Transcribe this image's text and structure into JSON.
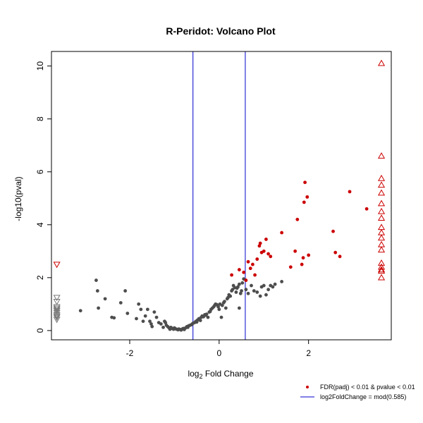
{
  "chart_data": {
    "type": "scatter",
    "title": "R-Peridot: Volcano Plot",
    "xlabel": {
      "base": "log",
      "sub": "2",
      "rest": " Fold Change"
    },
    "ylabel": "-log10(pval)",
    "xlim": [
      -3.75,
      3.85
    ],
    "ylim": [
      -0.35,
      10.55
    ],
    "xticks": [
      -2,
      0,
      2
    ],
    "yticks": [
      0,
      2,
      4,
      6,
      8,
      10
    ],
    "vlines": [
      -0.585,
      0.585
    ],
    "colors": {
      "nonsig": "#4d4d4d",
      "sig": "#cc0000",
      "vline": "#0000cc",
      "frame": "#000000"
    },
    "legend": [
      {
        "label": "FDR(padj) < 0.01 & pvalue < 0.01",
        "marker": "dot",
        "color": "#cc0000"
      },
      {
        "label": "log2FoldChange = mod(0.585)",
        "marker": "line",
        "color": "#0000cc"
      }
    ],
    "legend_position": "bottom-right",
    "series": [
      {
        "marker": "dot",
        "color": "#4d4d4d",
        "points": [
          [
            -3.1,
            0.75
          ],
          [
            -2.75,
            1.9
          ],
          [
            -2.72,
            1.5
          ],
          [
            -2.7,
            0.85
          ],
          [
            -2.55,
            1.2
          ],
          [
            -2.4,
            0.5
          ],
          [
            -2.35,
            0.48
          ],
          [
            -2.2,
            1.05
          ],
          [
            -2.1,
            1.5
          ],
          [
            -2.05,
            0.65
          ],
          [
            -1.85,
            0.45
          ],
          [
            -1.8,
            1.0
          ],
          [
            -1.75,
            0.8
          ],
          [
            -1.7,
            0.35
          ],
          [
            -1.65,
            0.55
          ],
          [
            -1.6,
            0.8
          ],
          [
            -1.55,
            0.35
          ],
          [
            -1.52,
            0.25
          ],
          [
            -1.5,
            0.15
          ],
          [
            -1.45,
            0.7
          ],
          [
            -1.4,
            0.5
          ],
          [
            -1.35,
            0.3
          ],
          [
            -1.3,
            0.25
          ],
          [
            -1.25,
            0.12
          ],
          [
            -1.22,
            0.35
          ],
          [
            -1.2,
            0.3
          ],
          [
            -1.18,
            0.2
          ],
          [
            -1.15,
            0.15
          ],
          [
            -1.12,
            0.1
          ],
          [
            -1.1,
            0.05
          ],
          [
            -1.08,
            0.12
          ],
          [
            -1.05,
            0.08
          ],
          [
            -1.02,
            0.05
          ],
          [
            -1.0,
            0.1
          ],
          [
            -0.98,
            0.07
          ],
          [
            -0.95,
            0.05
          ],
          [
            -0.92,
            0.03
          ],
          [
            -0.9,
            0.06
          ],
          [
            -0.87,
            0.04
          ],
          [
            -0.85,
            0.02
          ],
          [
            -0.82,
            0.06
          ],
          [
            -0.8,
            0.08
          ],
          [
            -0.78,
            0.04
          ],
          [
            -0.75,
            0.1
          ],
          [
            -0.72,
            0.15
          ],
          [
            -0.7,
            0.12
          ],
          [
            -0.68,
            0.18
          ],
          [
            -0.65,
            0.2
          ],
          [
            -0.62,
            0.22
          ],
          [
            -0.6,
            0.25
          ],
          [
            -0.58,
            0.28
          ],
          [
            -0.55,
            0.3
          ],
          [
            -0.52,
            0.35
          ],
          [
            -0.5,
            0.32
          ],
          [
            -0.48,
            0.4
          ],
          [
            -0.45,
            0.45
          ],
          [
            -0.42,
            0.38
          ],
          [
            -0.4,
            0.5
          ],
          [
            -0.38,
            0.55
          ],
          [
            -0.35,
            0.52
          ],
          [
            -0.32,
            0.6
          ],
          [
            -0.3,
            0.58
          ],
          [
            -0.28,
            0.62
          ],
          [
            -0.25,
            0.5
          ],
          [
            -0.22,
            0.7
          ],
          [
            -0.2,
            0.72
          ],
          [
            -0.18,
            0.8
          ],
          [
            -0.15,
            0.85
          ],
          [
            -0.12,
            0.9
          ],
          [
            -0.1,
            0.95
          ],
          [
            -0.08,
            1.0
          ],
          [
            -0.05,
            0.98
          ],
          [
            -0.02,
            0.9
          ],
          [
            0.0,
            0.8
          ],
          [
            0.02,
            1.0
          ],
          [
            0.05,
            0.5
          ],
          [
            0.07,
            0.95
          ],
          [
            0.1,
            1.05
          ],
          [
            0.12,
            1.1
          ],
          [
            0.15,
            0.85
          ],
          [
            0.18,
            1.2
          ],
          [
            0.2,
            1.25
          ],
          [
            0.22,
            1.35
          ],
          [
            0.25,
            1.3
          ],
          [
            0.28,
            1.5
          ],
          [
            0.3,
            1.55
          ],
          [
            0.32,
            1.7
          ],
          [
            0.35,
            1.62
          ],
          [
            0.38,
            1.45
          ],
          [
            0.4,
            1.6
          ],
          [
            0.42,
            1.65
          ],
          [
            0.45,
            1.75
          ],
          [
            0.48,
            1.4
          ],
          [
            0.5,
            1.5
          ],
          [
            0.52,
            1.8
          ],
          [
            0.55,
            1.95
          ],
          [
            0.45,
            0.85
          ],
          [
            0.6,
            1.55
          ],
          [
            0.65,
            1.4
          ],
          [
            0.72,
            1.7
          ],
          [
            0.78,
            1.5
          ],
          [
            0.85,
            1.45
          ],
          [
            0.92,
            1.3
          ],
          [
            0.95,
            1.65
          ],
          [
            1.0,
            1.7
          ],
          [
            1.05,
            1.35
          ],
          [
            1.1,
            1.55
          ],
          [
            1.15,
            1.7
          ],
          [
            1.2,
            1.65
          ],
          [
            1.25,
            1.75
          ],
          [
            1.4,
            1.85
          ]
        ]
      },
      {
        "marker": "dot",
        "color": "#cc0000",
        "points": [
          [
            0.28,
            2.1
          ],
          [
            0.45,
            2.3
          ],
          [
            0.55,
            2.2
          ],
          [
            0.6,
            1.9
          ],
          [
            0.65,
            2.6
          ],
          [
            0.7,
            2.35
          ],
          [
            0.75,
            2.5
          ],
          [
            0.8,
            2.1
          ],
          [
            0.85,
            2.7
          ],
          [
            0.9,
            3.2
          ],
          [
            0.92,
            3.3
          ],
          [
            0.95,
            2.95
          ],
          [
            1.0,
            3.0
          ],
          [
            1.05,
            3.45
          ],
          [
            1.1,
            2.9
          ],
          [
            1.15,
            2.8
          ],
          [
            1.4,
            3.7
          ],
          [
            1.6,
            2.4
          ],
          [
            1.7,
            3.0
          ],
          [
            1.75,
            4.2
          ],
          [
            1.85,
            2.5
          ],
          [
            1.88,
            2.75
          ],
          [
            1.9,
            4.85
          ],
          [
            1.92,
            5.6
          ],
          [
            1.97,
            5.05
          ],
          [
            2.0,
            2.85
          ],
          [
            2.55,
            3.75
          ],
          [
            2.6,
            2.95
          ],
          [
            2.7,
            2.8
          ],
          [
            2.92,
            5.25
          ],
          [
            3.3,
            4.6
          ]
        ]
      },
      {
        "marker": "triangle-up",
        "color": "#cc0000",
        "points": [
          [
            3.63,
            10.1
          ],
          [
            3.63,
            6.6
          ],
          [
            3.63,
            5.75
          ],
          [
            3.63,
            5.5
          ],
          [
            3.63,
            5.2
          ],
          [
            3.63,
            4.8
          ],
          [
            3.63,
            4.5
          ],
          [
            3.63,
            4.25
          ],
          [
            3.63,
            3.9
          ],
          [
            3.63,
            3.7
          ],
          [
            3.63,
            3.5
          ],
          [
            3.63,
            3.25
          ],
          [
            3.63,
            3.05
          ],
          [
            3.63,
            2.55
          ],
          [
            3.63,
            2.4
          ],
          [
            3.63,
            2.3
          ],
          [
            3.63,
            2.25
          ],
          [
            3.63,
            2.0
          ]
        ]
      },
      {
        "marker": "triangle-down",
        "color": "#cc0000",
        "points": [
          [
            -3.63,
            2.5
          ]
        ]
      },
      {
        "marker": "triangle-down",
        "color": "#777777",
        "points": [
          [
            -3.63,
            1.25
          ],
          [
            -3.63,
            1.1
          ],
          [
            -3.63,
            0.9
          ],
          [
            -3.63,
            0.85
          ],
          [
            -3.63,
            0.8
          ],
          [
            -3.63,
            0.75
          ],
          [
            -3.63,
            0.68
          ],
          [
            -3.63,
            0.6
          ],
          [
            -3.63,
            0.55
          ],
          [
            -3.63,
            0.5
          ],
          [
            -3.63,
            0.42
          ]
        ]
      }
    ]
  }
}
